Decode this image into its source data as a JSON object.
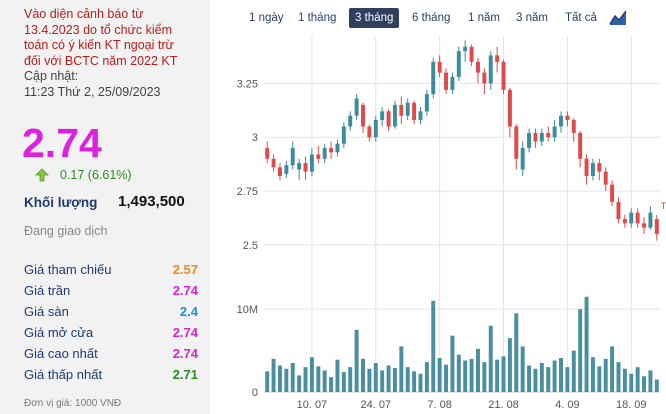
{
  "sidebar": {
    "warning_lines": [
      "Vào diện cảnh báo từ",
      "13.4.2023 do tổ chức kiểm",
      "toán có ý kiến KT ngoại trừ",
      "đối với BCTC năm 2022 KT"
    ],
    "updated_label": "Cập nhật:",
    "updated_time": "11:23 Thứ 2, 25/09/2023",
    "price": "2.74",
    "change": "0.17 (6.61%)",
    "volume_label": "Khối lượng",
    "volume_value": "1,493,500",
    "status": "Đang giao dịch",
    "stats": [
      {
        "label": "Giá tham chiếu",
        "value": "2.57",
        "color": "#ef8a1c"
      },
      {
        "label": "Giá trần",
        "value": "2.74",
        "color": "#d522d5"
      },
      {
        "label": "Giá sàn",
        "value": "2.4",
        "color": "#1a8fd6"
      },
      {
        "label": "Giá mở cửa",
        "value": "2.74",
        "color": "#d522d5"
      },
      {
        "label": "Giá cao nhất",
        "value": "2.74",
        "color": "#d522d5"
      },
      {
        "label": "Giá thấp nhất",
        "value": "2.71",
        "color": "#2c8a24"
      }
    ],
    "unit_note": "Đơn vị giá: 1000 VNĐ"
  },
  "range_tabs": [
    {
      "label": "1 ngày",
      "active": false
    },
    {
      "label": "1 tháng",
      "active": false
    },
    {
      "label": "3 tháng",
      "active": true
    },
    {
      "label": "6 tháng",
      "active": false
    },
    {
      "label": "1 năm",
      "active": false
    },
    {
      "label": "3 năm",
      "active": false
    },
    {
      "label": "Tất cả",
      "active": false
    }
  ],
  "colors": {
    "up": "#3c8d9b",
    "down": "#e24a4a",
    "volume": "#4a8fa1",
    "grid": "#e4e4e4",
    "active_tab": "#2f3f62"
  },
  "chart_data": {
    "type": "candlestick",
    "price_axis": {
      "ticks": [
        2.5,
        2.75,
        3,
        3.25
      ],
      "tick_labels": [
        "2.5",
        "2.75",
        "3",
        "3.25"
      ],
      "range": [
        2.43,
        3.47
      ]
    },
    "volume_axis": {
      "ticks": [
        0,
        10000000
      ],
      "tick_labels": [
        "0",
        "10M"
      ],
      "range": [
        0,
        14000000
      ]
    },
    "x_tick_labels": [
      "10. 07",
      "24. 07",
      "7. 08",
      "21. 08",
      "4. 09",
      "18. 09"
    ],
    "x_tick_index": [
      7,
      17,
      27,
      37,
      47,
      57
    ],
    "last_price_marker": "T",
    "candles": [
      {
        "o": 2.95,
        "c": 2.9,
        "h": 2.98,
        "l": 2.88,
        "v": 2.5
      },
      {
        "o": 2.9,
        "c": 2.86,
        "h": 2.92,
        "l": 2.84,
        "v": 4.0
      },
      {
        "o": 2.86,
        "c": 2.82,
        "h": 2.88,
        "l": 2.8,
        "v": 3.2
      },
      {
        "o": 2.83,
        "c": 2.87,
        "h": 2.89,
        "l": 2.81,
        "v": 2.8
      },
      {
        "o": 2.87,
        "c": 2.95,
        "h": 2.98,
        "l": 2.85,
        "v": 3.5
      },
      {
        "o": 2.85,
        "c": 2.88,
        "h": 2.9,
        "l": 2.8,
        "v": 2.0
      },
      {
        "o": 2.88,
        "c": 2.84,
        "h": 2.91,
        "l": 2.8,
        "v": 3.0
      },
      {
        "o": 2.84,
        "c": 2.92,
        "h": 2.95,
        "l": 2.82,
        "v": 4.2
      },
      {
        "o": 2.92,
        "c": 2.9,
        "h": 2.96,
        "l": 2.88,
        "v": 3.1
      },
      {
        "o": 2.9,
        "c": 2.95,
        "h": 2.97,
        "l": 2.88,
        "v": 2.6
      },
      {
        "o": 2.95,
        "c": 2.93,
        "h": 2.98,
        "l": 2.9,
        "v": 1.8
      },
      {
        "o": 2.93,
        "c": 2.97,
        "h": 2.99,
        "l": 2.91,
        "v": 3.9
      },
      {
        "o": 2.97,
        "c": 3.05,
        "h": 3.07,
        "l": 2.95,
        "v": 2.4
      },
      {
        "o": 3.05,
        "c": 3.1,
        "h": 3.12,
        "l": 3.03,
        "v": 3.0
      },
      {
        "o": 3.1,
        "c": 3.18,
        "h": 3.2,
        "l": 3.08,
        "v": 7.5
      },
      {
        "o": 3.15,
        "c": 3.05,
        "h": 3.16,
        "l": 3.02,
        "v": 4.0
      },
      {
        "o": 3.05,
        "c": 3.0,
        "h": 3.06,
        "l": 2.98,
        "v": 2.8
      },
      {
        "o": 3.0,
        "c": 3.08,
        "h": 3.1,
        "l": 2.98,
        "v": 3.5
      },
      {
        "o": 3.08,
        "c": 3.12,
        "h": 3.14,
        "l": 3.05,
        "v": 2.6
      },
      {
        "o": 3.12,
        "c": 3.05,
        "h": 3.13,
        "l": 3.03,
        "v": 3.2
      },
      {
        "o": 3.05,
        "c": 3.15,
        "h": 3.17,
        "l": 3.04,
        "v": 2.9
      },
      {
        "o": 3.15,
        "c": 3.1,
        "h": 3.19,
        "l": 3.06,
        "v": 5.5
      },
      {
        "o": 3.1,
        "c": 3.16,
        "h": 3.18,
        "l": 3.08,
        "v": 3.0
      },
      {
        "o": 3.16,
        "c": 3.08,
        "h": 3.17,
        "l": 3.06,
        "v": 2.5
      },
      {
        "o": 3.08,
        "c": 3.12,
        "h": 3.14,
        "l": 3.06,
        "v": 2.2
      },
      {
        "o": 3.12,
        "c": 3.2,
        "h": 3.22,
        "l": 3.1,
        "v": 3.6
      },
      {
        "o": 3.2,
        "c": 3.35,
        "h": 3.37,
        "l": 3.18,
        "v": 11.0
      },
      {
        "o": 3.35,
        "c": 3.3,
        "h": 3.38,
        "l": 3.28,
        "v": 4.1
      },
      {
        "o": 3.3,
        "c": 3.22,
        "h": 3.32,
        "l": 3.2,
        "v": 3.3
      },
      {
        "o": 3.22,
        "c": 3.28,
        "h": 3.3,
        "l": 3.2,
        "v": 6.8
      },
      {
        "o": 3.28,
        "c": 3.4,
        "h": 3.42,
        "l": 3.26,
        "v": 4.5
      },
      {
        "o": 3.4,
        "c": 3.42,
        "h": 3.45,
        "l": 3.35,
        "v": 3.8
      },
      {
        "o": 3.42,
        "c": 3.35,
        "h": 3.43,
        "l": 3.33,
        "v": 4.0
      },
      {
        "o": 3.35,
        "c": 3.3,
        "h": 3.37,
        "l": 3.25,
        "v": 5.2
      },
      {
        "o": 3.3,
        "c": 3.25,
        "h": 3.32,
        "l": 3.2,
        "v": 3.6
      },
      {
        "o": 3.25,
        "c": 3.38,
        "h": 3.4,
        "l": 3.22,
        "v": 8.0
      },
      {
        "o": 3.38,
        "c": 3.35,
        "h": 3.42,
        "l": 3.3,
        "v": 3.9
      },
      {
        "o": 3.35,
        "c": 3.22,
        "h": 3.36,
        "l": 3.2,
        "v": 4.3
      },
      {
        "o": 3.22,
        "c": 3.05,
        "h": 3.23,
        "l": 3.0,
        "v": 6.5
      },
      {
        "o": 3.05,
        "c": 2.9,
        "h": 3.06,
        "l": 2.85,
        "v": 9.5
      },
      {
        "o": 2.85,
        "c": 2.95,
        "h": 2.98,
        "l": 2.82,
        "v": 5.5
      },
      {
        "o": 2.95,
        "c": 3.02,
        "h": 3.04,
        "l": 2.93,
        "v": 3.2
      },
      {
        "o": 3.02,
        "c": 2.98,
        "h": 3.04,
        "l": 2.95,
        "v": 2.8
      },
      {
        "o": 2.98,
        "c": 3.02,
        "h": 3.04,
        "l": 2.96,
        "v": 3.5
      },
      {
        "o": 3.02,
        "c": 3.0,
        "h": 3.05,
        "l": 2.98,
        "v": 3.0
      },
      {
        "o": 3.0,
        "c": 3.05,
        "h": 3.08,
        "l": 2.98,
        "v": 3.8
      },
      {
        "o": 3.05,
        "c": 3.1,
        "h": 3.12,
        "l": 3.02,
        "v": 4.1
      },
      {
        "o": 3.1,
        "c": 3.08,
        "h": 3.12,
        "l": 3.05,
        "v": 3.0
      },
      {
        "o": 3.08,
        "c": 3.02,
        "h": 3.09,
        "l": 2.98,
        "v": 5.0
      },
      {
        "o": 3.02,
        "c": 2.9,
        "h": 3.03,
        "l": 2.86,
        "v": 10.0
      },
      {
        "o": 2.9,
        "c": 2.82,
        "h": 2.92,
        "l": 2.78,
        "v": 11.5
      },
      {
        "o": 2.82,
        "c": 2.88,
        "h": 2.9,
        "l": 2.8,
        "v": 4.2
      },
      {
        "o": 2.88,
        "c": 2.84,
        "h": 2.9,
        "l": 2.8,
        "v": 3.1
      },
      {
        "o": 2.84,
        "c": 2.78,
        "h": 2.86,
        "l": 2.75,
        "v": 4.0
      },
      {
        "o": 2.78,
        "c": 2.7,
        "h": 2.8,
        "l": 2.68,
        "v": 5.5
      },
      {
        "o": 2.7,
        "c": 2.62,
        "h": 2.72,
        "l": 2.6,
        "v": 3.6
      },
      {
        "o": 2.62,
        "c": 2.6,
        "h": 2.64,
        "l": 2.58,
        "v": 2.8
      },
      {
        "o": 2.6,
        "c": 2.65,
        "h": 2.67,
        "l": 2.58,
        "v": 2.2
      },
      {
        "o": 2.65,
        "c": 2.6,
        "h": 2.67,
        "l": 2.58,
        "v": 3.0
      },
      {
        "o": 2.6,
        "c": 2.58,
        "h": 2.63,
        "l": 2.55,
        "v": 1.9
      },
      {
        "o": 2.58,
        "c": 2.65,
        "h": 2.68,
        "l": 2.57,
        "v": 2.6
      },
      {
        "o": 2.62,
        "c": 2.55,
        "h": 2.64,
        "l": 2.52,
        "v": 1.5
      }
    ]
  }
}
